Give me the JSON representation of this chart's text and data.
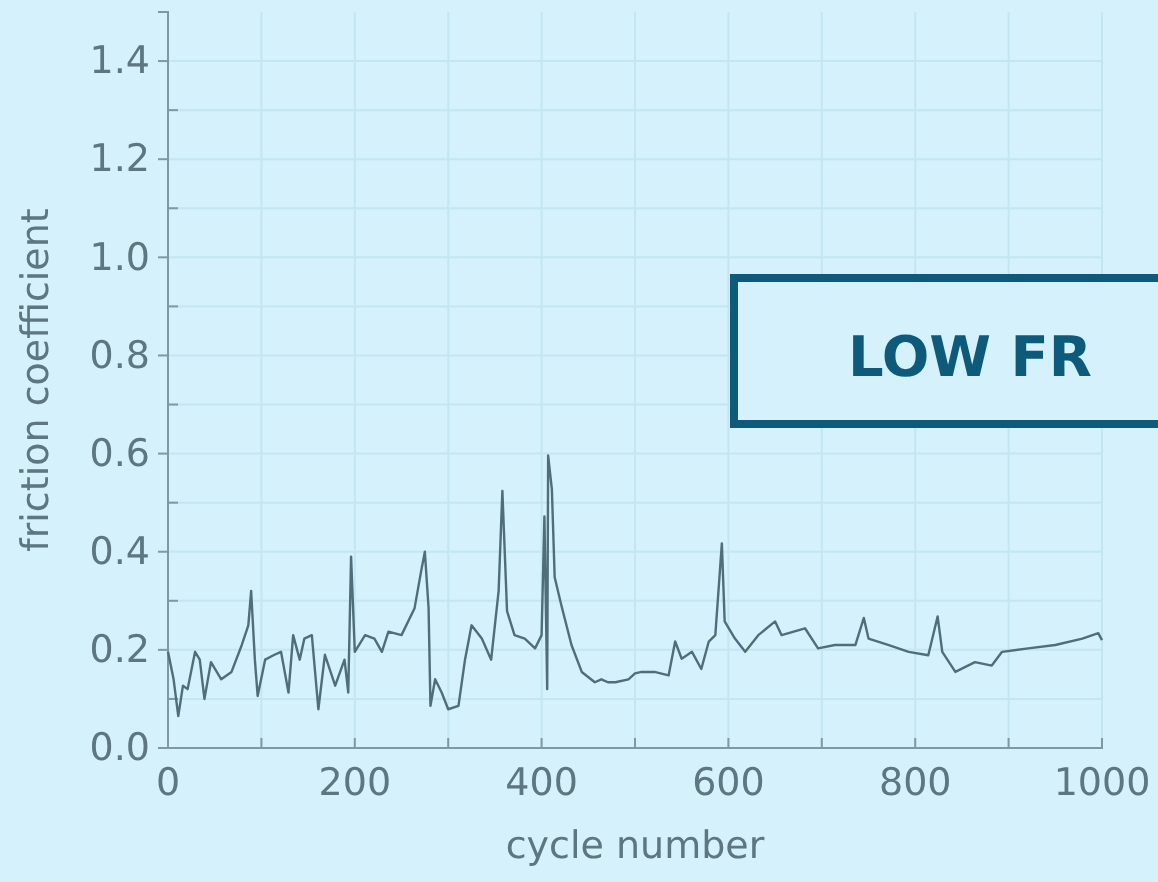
{
  "chart_data": {
    "type": "line",
    "xlabel": "cycle number",
    "ylabel": "friction coefficient",
    "annotations": [
      "LOW FR"
    ],
    "xlim": [
      0,
      1000
    ],
    "ylim": [
      0,
      1.5
    ],
    "xticks": [
      0,
      {
        "value": 100,
        "label": null
      },
      200,
      {
        "value": 300,
        "label": null
      },
      400,
      {
        "value": 500,
        "label": null
      },
      600,
      {
        "value": 700,
        "label": null
      },
      800,
      {
        "value": 900,
        "label": null
      },
      1000
    ],
    "yticks": [
      {
        "value": 0,
        "label": "0.0"
      },
      {
        "value": 0.1,
        "label": null
      },
      0.2,
      {
        "value": 0.3,
        "label": null
      },
      0.4,
      {
        "value": 0.5,
        "label": null
      },
      0.6,
      {
        "value": 0.7,
        "label": null
      },
      0.8,
      {
        "value": 0.9,
        "label": null
      },
      {
        "value": 1,
        "label": "1.0"
      },
      {
        "value": 1.1,
        "label": null
      },
      1.2,
      {
        "value": 1.3,
        "label": null
      },
      1.4
    ],
    "grid": true,
    "marker": "none",
    "line_style": "solid",
    "series": [
      {
        "color": "#4f6e7a",
        "x": [
          0,
          6,
          11,
          16,
          21,
          29,
          34,
          39,
          46,
          57,
          68,
          79,
          86,
          89,
          93,
          96,
          104,
          114,
          121,
          129,
          134,
          141,
          146,
          154,
          161,
          168,
          179,
          189,
          193,
          196,
          200,
          211,
          221,
          229,
          236,
          250,
          264,
          271,
          275,
          279,
          281,
          286,
          293,
          300,
          311,
          318,
          325,
          336,
          346,
          354,
          358,
          363,
          371,
          382,
          393,
          400,
          403,
          406,
          407,
          411,
          414,
          421,
          432,
          443,
          457,
          464,
          471,
          479,
          493,
          500,
          507,
          521,
          536,
          543,
          550,
          561,
          571,
          579,
          586,
          593,
          596,
          607,
          618,
          632,
          650,
          657,
          682,
          696,
          714,
          736,
          745,
          750,
          771,
          793,
          814,
          824,
          829,
          843,
          864,
          882,
          893,
          921,
          950,
          979,
          996,
          1000
        ],
        "values": [
          0.196,
          0.14,
          0.065,
          0.127,
          0.12,
          0.196,
          0.18,
          0.1,
          0.175,
          0.14,
          0.155,
          0.21,
          0.25,
          0.32,
          0.18,
          0.106,
          0.18,
          0.19,
          0.196,
          0.113,
          0.23,
          0.18,
          0.223,
          0.23,
          0.079,
          0.19,
          0.127,
          0.18,
          0.113,
          0.39,
          0.196,
          0.23,
          0.223,
          0.196,
          0.237,
          0.23,
          0.285,
          0.36,
          0.4,
          0.285,
          0.086,
          0.14,
          0.113,
          0.079,
          0.086,
          0.18,
          0.25,
          0.223,
          0.18,
          0.32,
          0.524,
          0.279,
          0.23,
          0.223,
          0.203,
          0.23,
          0.472,
          0.12,
          0.596,
          0.527,
          0.348,
          0.292,
          0.21,
          0.155,
          0.134,
          0.14,
          0.134,
          0.134,
          0.14,
          0.152,
          0.155,
          0.155,
          0.148,
          0.217,
          0.182,
          0.196,
          0.161,
          0.217,
          0.23,
          0.417,
          0.258,
          0.223,
          0.196,
          0.23,
          0.258,
          0.23,
          0.244,
          0.203,
          0.21,
          0.21,
          0.265,
          0.223,
          0.21,
          0.196,
          0.189,
          0.268,
          0.196,
          0.155,
          0.175,
          0.168,
          0.196,
          0.203,
          0.21,
          0.223,
          0.234,
          0.22
        ]
      }
    ]
  }
}
